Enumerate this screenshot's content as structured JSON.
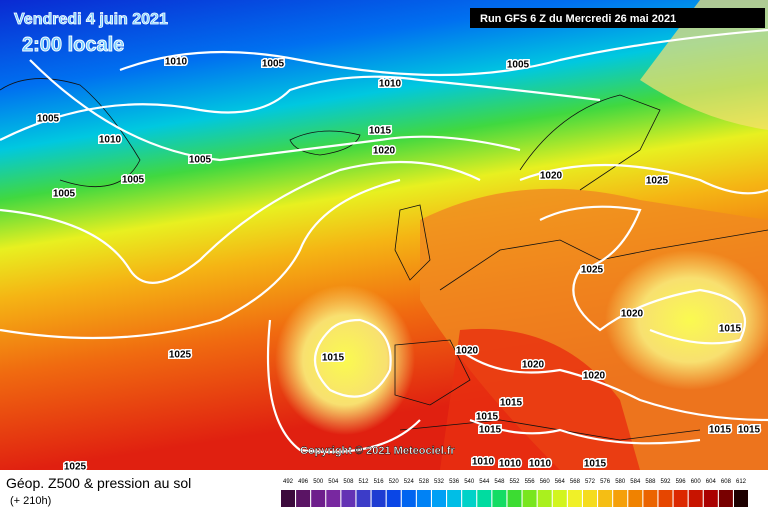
{
  "header": {
    "date": "Vendredi 4 juin 2021",
    "time": "2:00 locale",
    "run": "Run GFS 6 Z du Mercredi 26 mai 2021"
  },
  "copyright": "Copyright © 2021 Meteociel.fr",
  "isobar_labels": [
    1010,
    1005,
    1005,
    1010,
    1005,
    1010,
    1015,
    1020,
    1005,
    1005,
    1005,
    1020,
    1025,
    1025,
    1020,
    1015,
    1025,
    1015,
    1020,
    1020,
    1020,
    1015,
    1015,
    1015,
    1015,
    1015,
    1010,
    1010,
    1010,
    1015,
    1025
  ],
  "footer": {
    "title": "Géop. Z500 & pression au sol",
    "lead": "(+ 210h)"
  },
  "legend": {
    "labels": [
      492,
      496,
      500,
      504,
      508,
      512,
      516,
      520,
      524,
      528,
      532,
      536,
      540,
      544,
      548,
      552,
      556,
      560,
      564,
      568,
      572,
      576,
      580,
      584,
      588,
      592,
      596,
      600,
      604,
      608,
      612
    ],
    "colors": [
      "#3c0a3c",
      "#5a1464",
      "#6e1e8c",
      "#7828a0",
      "#6432b4",
      "#3c3cc8",
      "#1e3cd2",
      "#0a46e6",
      "#0064f0",
      "#0082f5",
      "#00a0f5",
      "#00bee6",
      "#00d2c8",
      "#00dca0",
      "#14dc64",
      "#3cdc32",
      "#78e61e",
      "#aaf01e",
      "#d2f51e",
      "#f0f028",
      "#f5dc1e",
      "#f5be14",
      "#f5a00a",
      "#f08200",
      "#eb6400",
      "#e64600",
      "#dc2800",
      "#c81400",
      "#aa0000",
      "#780000",
      "#1e0000"
    ]
  }
}
